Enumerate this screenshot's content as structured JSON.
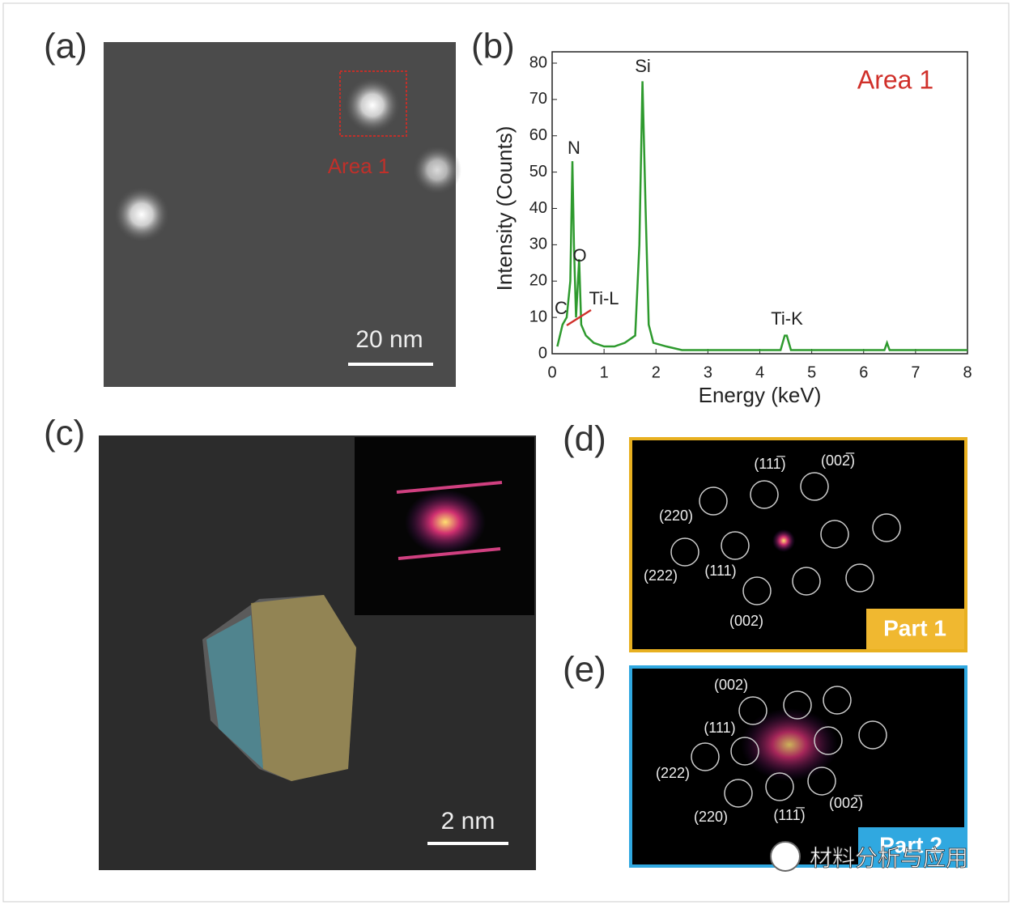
{
  "panels": {
    "a": {
      "label": "(a)",
      "area_label": "Area 1",
      "scale_bar": "20 nm"
    },
    "b": {
      "label": "(b)"
    },
    "c": {
      "label": "(c)",
      "scale_bar": "2 nm"
    },
    "d": {
      "label": "(d)",
      "spots": [
        "(111̅)",
        "(002̅)",
        "(220)",
        "(222)",
        "(111)",
        "(002)"
      ],
      "part": "Part 1"
    },
    "e": {
      "label": "(e)",
      "spots": [
        "(002)",
        "(111)",
        "(222)",
        "(220)",
        "(111̅)",
        "(002̅)"
      ],
      "part": "Part 2"
    }
  },
  "chart_data": {
    "type": "line",
    "x_label": "Energy (keV)",
    "y_label": "Intensity (Counts)",
    "annotations": [
      "Si",
      "N",
      "O",
      "C",
      "Ti-L",
      "Ti-K",
      "Area 1"
    ],
    "xlim": [
      0,
      8
    ],
    "xticks": [
      0,
      1,
      2,
      3,
      4,
      5,
      6,
      7,
      8
    ],
    "ylim": [
      0,
      80
    ],
    "yticks": [
      0,
      10,
      20,
      30,
      40,
      50,
      60,
      70,
      80
    ],
    "color": "#2e9a2e",
    "x": [
      0.1,
      0.2,
      0.28,
      0.35,
      0.39,
      0.42,
      0.46,
      0.52,
      0.56,
      0.65,
      0.8,
      1.0,
      1.2,
      1.4,
      1.6,
      1.68,
      1.74,
      1.8,
      1.86,
      1.95,
      2.2,
      2.5,
      3,
      3.5,
      4,
      4.4,
      4.48,
      4.52,
      4.6,
      5,
      5.5,
      6,
      6.4,
      6.45,
      6.5,
      7,
      7.5,
      8
    ],
    "values": [
      2,
      8,
      10,
      20,
      53,
      30,
      10,
      26,
      8,
      5,
      3,
      2,
      2,
      3,
      5,
      30,
      75,
      40,
      8,
      3,
      2,
      1,
      1,
      1,
      1,
      1,
      5,
      5,
      1,
      1,
      1,
      1,
      1,
      3,
      1,
      1,
      1,
      1
    ]
  },
  "watermark": "材料分析与应用"
}
